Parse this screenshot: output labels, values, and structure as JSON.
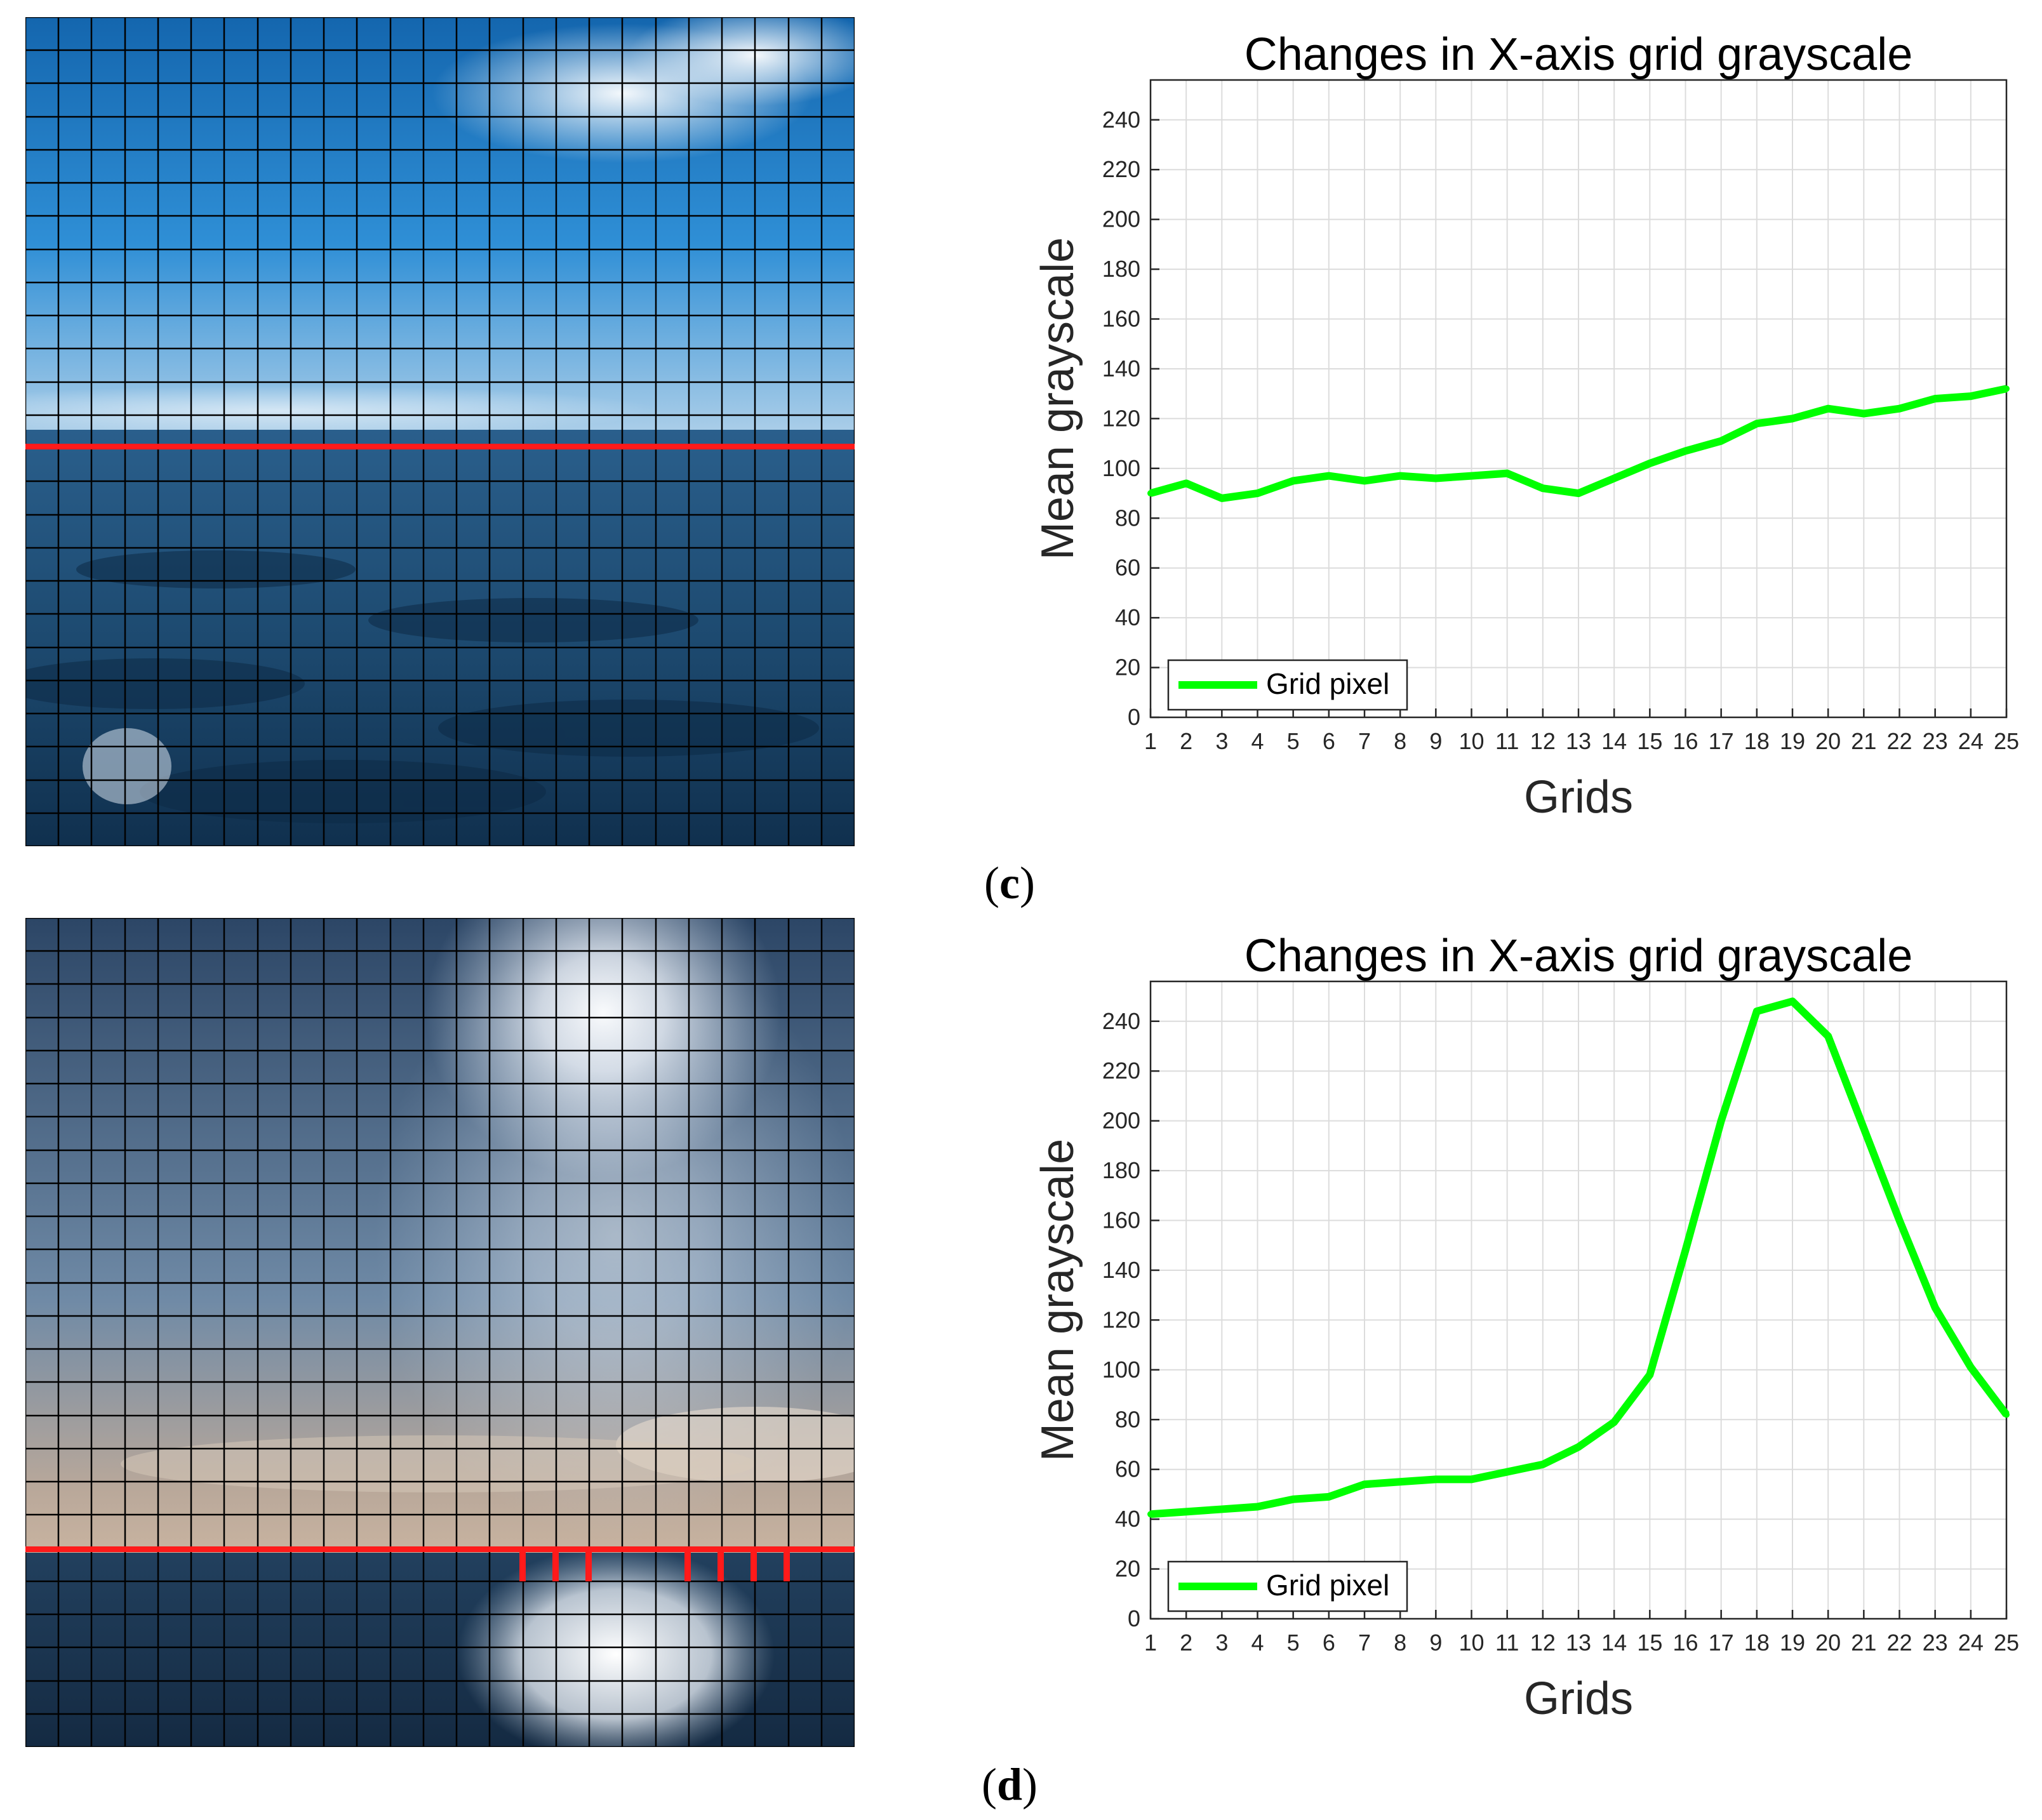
{
  "panels": [
    {
      "label_open": "(",
      "label_letter": "c",
      "label_close": ")"
    },
    {
      "label_open": "(",
      "label_letter": "d",
      "label_close": ")"
    }
  ],
  "colors": {
    "line": "#00ff00",
    "highlight": "#ff1a1a",
    "sky_top_c": "#1e6fb8",
    "sea_c": "#1f4f74",
    "sky_top_d": "#2e4c6e",
    "sea_d": "#1c3550"
  },
  "chart_data": [
    {
      "type": "line",
      "title": "Changes in X-axis grid grayscale",
      "xlabel": "Grids",
      "ylabel": "Mean grayscale",
      "xlim": [
        1,
        25
      ],
      "ylim": [
        0,
        256
      ],
      "x": [
        1,
        2,
        3,
        4,
        5,
        6,
        7,
        8,
        9,
        10,
        11,
        12,
        13,
        14,
        15,
        16,
        17,
        18,
        19,
        20,
        21,
        22,
        23,
        24,
        25
      ],
      "xticks": [
        "1",
        "2",
        "3",
        "4",
        "5",
        "6",
        "7",
        "8",
        "9",
        "10",
        "11",
        "12",
        "13",
        "14",
        "15",
        "16",
        "17",
        "18",
        "19",
        "20",
        "21",
        "22",
        "23",
        "24",
        "25"
      ],
      "yticks": [
        "0",
        "20",
        "40",
        "60",
        "80",
        "100",
        "120",
        "140",
        "160",
        "180",
        "200",
        "220",
        "240"
      ],
      "grid": true,
      "legend_position": "bottom-left",
      "series": [
        {
          "name": "Grid pixel",
          "values": [
            90,
            94,
            88,
            90,
            95,
            97,
            95,
            97,
            96,
            97,
            98,
            92,
            90,
            96,
            102,
            107,
            111,
            118,
            120,
            124,
            122,
            124,
            128,
            129,
            132
          ]
        }
      ]
    },
    {
      "type": "line",
      "title": "Changes in X-axis grid grayscale",
      "xlabel": "Grids",
      "ylabel": "Mean grayscale",
      "xlim": [
        1,
        25
      ],
      "ylim": [
        0,
        256
      ],
      "x": [
        1,
        2,
        3,
        4,
        5,
        6,
        7,
        8,
        9,
        10,
        11,
        12,
        13,
        14,
        15,
        16,
        17,
        18,
        19,
        20,
        21,
        22,
        23,
        24,
        25
      ],
      "xticks": [
        "1",
        "2",
        "3",
        "4",
        "5",
        "6",
        "7",
        "8",
        "9",
        "10",
        "11",
        "12",
        "13",
        "14",
        "15",
        "16",
        "17",
        "18",
        "19",
        "20",
        "21",
        "22",
        "23",
        "24",
        "25"
      ],
      "yticks": [
        "0",
        "20",
        "40",
        "60",
        "80",
        "100",
        "120",
        "140",
        "160",
        "180",
        "200",
        "220",
        "240"
      ],
      "grid": true,
      "legend_position": "bottom-left",
      "series": [
        {
          "name": "Grid pixel",
          "values": [
            42,
            43,
            44,
            45,
            48,
            49,
            54,
            55,
            56,
            56,
            59,
            62,
            69,
            79,
            98,
            148,
            200,
            244,
            248,
            234,
            197,
            160,
            125,
            101,
            82
          ]
        }
      ]
    }
  ]
}
